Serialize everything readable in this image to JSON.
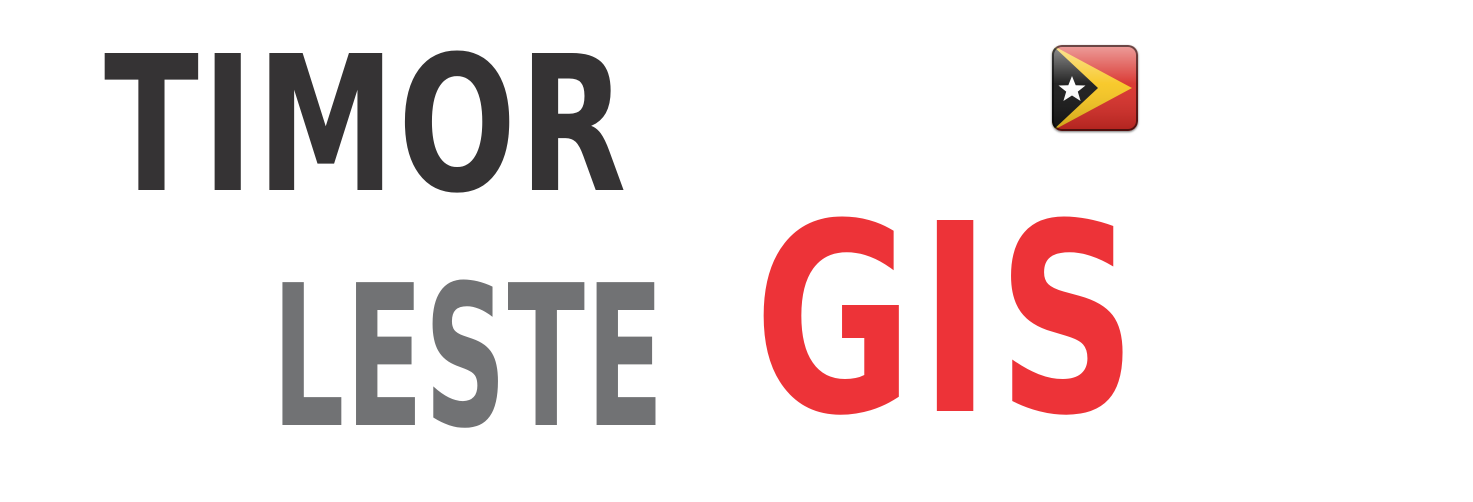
{
  "logo": {
    "word_1": "TIMOR",
    "word_2": "LESTE",
    "word_3": "GIS",
    "colors": {
      "word_1": "#353334",
      "word_2": "#717274",
      "word_3": "#ed3338"
    }
  },
  "flag": {
    "icon": "timor-leste-flag-icon",
    "colors": {
      "field": "#d72a24",
      "yellow": "#f7c51b",
      "black": "#111111",
      "star": "#ffffff"
    }
  }
}
